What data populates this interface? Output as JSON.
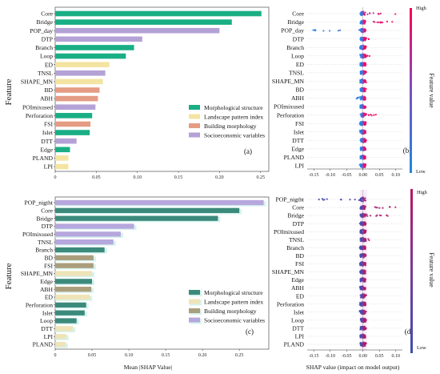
{
  "figure": {
    "y_axis_title": "Feature",
    "x_axis_title_bar": "Mean |SHAP Value|",
    "x_axis_title_swarm": "SHAP value (impact on model output)",
    "colorbar_title": "Feature value",
    "colorbar_high": "High",
    "colorbar_low": "Low"
  },
  "chart_data": [
    {
      "panel": "(a)",
      "type": "bar",
      "categories": [
        "Core",
        "Bridge",
        "POP_day",
        "DTP",
        "Branch",
        "Loop",
        "ED",
        "TNSL",
        "SHAPE_MN",
        "BD",
        "ABH",
        "POImixused",
        "Perforation",
        "FSI",
        "Islet",
        "DTT",
        "Edge",
        "PLAND",
        "LPI"
      ],
      "values": [
        0.251,
        0.215,
        0.2,
        0.106,
        0.096,
        0.086,
        0.066,
        0.061,
        0.058,
        0.054,
        0.052,
        0.049,
        0.045,
        0.043,
        0.042,
        0.026,
        0.018,
        0.016,
        0.016
      ],
      "groups": [
        "morph",
        "morph",
        "socio",
        "socio",
        "morph",
        "morph",
        "land",
        "socio",
        "land",
        "build",
        "build",
        "socio",
        "morph",
        "build",
        "morph",
        "socio",
        "morph",
        "land",
        "land"
      ],
      "xticks": [
        "0",
        "0.05",
        "0.10",
        "0.15",
        "0.20",
        "0.25"
      ],
      "xlim": [
        0,
        0.26
      ],
      "legend": [
        {
          "key": "morph",
          "label": "Morphological structure",
          "color": "#1aae84"
        },
        {
          "key": "land",
          "label": "Landscape pattern index",
          "color": "#f4e4a1"
        },
        {
          "key": "build",
          "label": "Building morphology",
          "color": "#e49c84"
        },
        {
          "key": "socio",
          "label": "Socioeconomic variables",
          "color": "#b4a2d6"
        }
      ]
    },
    {
      "panel": "(b)",
      "type": "scatter",
      "categories": [
        "Core",
        "Bridge",
        "POP_day",
        "DTP",
        "Branch",
        "Loop",
        "ED",
        "TNSL",
        "SHAPE_MN",
        "BD",
        "ABH",
        "POImixused",
        "Perforation",
        "FSI",
        "Islet",
        "DTT",
        "Edge",
        "PLAND",
        "LPI"
      ],
      "ranges": [
        [
          -0.01,
          0.1
        ],
        [
          -0.01,
          0.09
        ],
        [
          -0.16,
          0.01
        ],
        [
          -0.01,
          0.02
        ],
        [
          -0.01,
          0.01
        ],
        [
          -0.01,
          0.02
        ],
        [
          -0.01,
          0.01
        ],
        [
          -0.01,
          0.01
        ],
        [
          -0.01,
          0.01
        ],
        [
          -0.01,
          0.01
        ],
        [
          -0.02,
          0.01
        ],
        [
          -0.01,
          0.01
        ],
        [
          -0.01,
          0.04
        ],
        [
          -0.01,
          0.01
        ],
        [
          -0.01,
          0.01
        ],
        [
          -0.01,
          0.01
        ],
        [
          -0.01,
          0.01
        ],
        [
          -0.01,
          0.01
        ],
        [
          -0.01,
          0.01
        ]
      ],
      "xticks": [
        "-0.15",
        "-0.10",
        "-0.05",
        "0.00",
        "0.05",
        "0.10"
      ],
      "xlim": [
        -0.17,
        0.12
      ],
      "colormap": [
        "#1e88e5",
        "#7b4fc0",
        "#ff0052"
      ]
    },
    {
      "panel": "(c)",
      "type": "bar",
      "categories": [
        "POP_nigtht",
        "Core",
        "Bridge",
        "DTP",
        "POImixused",
        "TNSL",
        "Branch",
        "BD",
        "FSI",
        "SHAPE_MN",
        "Edge",
        "ABH",
        "ED",
        "Perforation",
        "Islet",
        "Loop",
        "DTT",
        "LPI",
        "PLAND"
      ],
      "values": [
        0.283,
        0.25,
        0.221,
        0.107,
        0.089,
        0.079,
        0.067,
        0.052,
        0.052,
        0.05,
        0.05,
        0.049,
        0.047,
        0.042,
        0.04,
        0.029,
        0.024,
        0.015,
        0.014
      ],
      "groups": [
        "socio",
        "morph",
        "morph",
        "socio",
        "socio",
        "socio",
        "morph",
        "build",
        "build",
        "land",
        "morph",
        "build",
        "land",
        "morph",
        "morph",
        "morph",
        "land",
        "land",
        "land"
      ],
      "xticks": [
        "0",
        "0.05",
        "0.10",
        "0.15",
        "0.20",
        "0.25"
      ],
      "xlim": [
        0,
        0.29
      ],
      "legend": [
        {
          "key": "morph",
          "label": "Morphological structure",
          "color": "#3c8a7b"
        },
        {
          "key": "land",
          "label": "Landscape pattern index",
          "color": "#eee4b8"
        },
        {
          "key": "build",
          "label": "Building morphology",
          "color": "#ab9e7c"
        },
        {
          "key": "socio",
          "label": "Socioeconomic variables",
          "color": "#b6a7dd"
        }
      ]
    },
    {
      "panel": "(d)",
      "type": "scatter",
      "categories": [
        "POP_nigtht",
        "Core",
        "Bridge",
        "DTP",
        "POImixused",
        "TNSL",
        "Branch",
        "BD",
        "FSI",
        "SHAPE_MN",
        "Edge",
        "ABH",
        "ED",
        "Perforation",
        "Islet",
        "Loop",
        "DTT",
        "LPI",
        "PLAND"
      ],
      "ranges": [
        [
          -0.16,
          0.02
        ],
        [
          -0.01,
          0.1
        ],
        [
          -0.01,
          0.09
        ],
        [
          -0.01,
          0.01
        ],
        [
          -0.01,
          0.01
        ],
        [
          -0.01,
          0.02
        ],
        [
          -0.01,
          0.01
        ],
        [
          -0.01,
          0.01
        ],
        [
          -0.01,
          0.01
        ],
        [
          -0.01,
          0.01
        ],
        [
          -0.01,
          0.01
        ],
        [
          -0.01,
          0.01
        ],
        [
          -0.01,
          0.01
        ],
        [
          -0.01,
          0.01
        ],
        [
          -0.01,
          0.01
        ],
        [
          -0.01,
          0.01
        ],
        [
          -0.01,
          0.01
        ],
        [
          -0.01,
          0.01
        ],
        [
          -0.01,
          0.01
        ]
      ],
      "xticks": [
        "-0.15",
        "-0.10",
        "-0.05",
        "0.00",
        "0.05",
        "0.10"
      ],
      "xlim": [
        -0.17,
        0.12
      ],
      "colormap": [
        "#3f4fb0",
        "#7a3a98",
        "#b8175f"
      ]
    }
  ]
}
